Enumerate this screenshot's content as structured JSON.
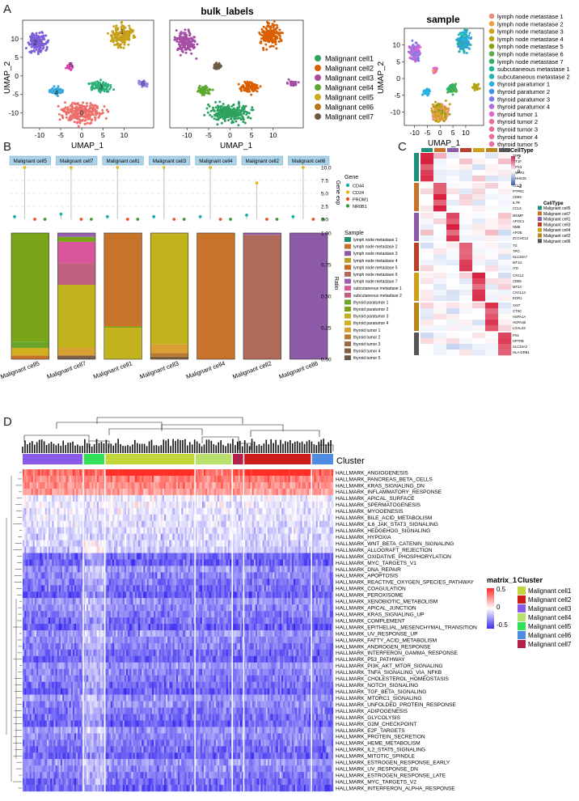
{
  "panel_labels": {
    "a": "A",
    "b": "B",
    "c": "C",
    "d": "D"
  },
  "colors": {
    "clusters": [
      "#2ca25f",
      "#d95f02",
      "#a54ea3",
      "#5fa830",
      "#cfa81c",
      "#b8761a",
      "#6b5a47"
    ],
    "samples": [
      "#f08a7c",
      "#e8a045",
      "#d4a017",
      "#b5a40f",
      "#8fa00c",
      "#55b046",
      "#2fb36a",
      "#22b59a",
      "#1eb5b5",
      "#2ab0e0",
      "#3d95e8",
      "#7a7ee8",
      "#b46ce0",
      "#e066cf",
      "#ee6aa5"
    ],
    "heat_high": "#ff2a2a",
    "heat_mid": "#ffffff",
    "heat_low": "#3b2bf0"
  },
  "panel_a": {
    "plot1": {
      "xlabel": "UMAP_1",
      "ylabel": "UMAP_2",
      "xticks": [
        "-10",
        "-5",
        "0",
        "5",
        "10"
      ],
      "yticks": [
        "10",
        "5",
        "0",
        "-5",
        "-10"
      ],
      "cluster_numbers": [
        "0",
        "1",
        "2",
        "3",
        "4",
        "5",
        "6"
      ]
    },
    "plot2": {
      "title": "bulk_labels",
      "xlabel": "UMAP_1",
      "xticks": [
        "-10",
        "-5",
        "0",
        "5",
        "10"
      ]
    },
    "plot2_legend": [
      "Malignant cell1",
      "Malignant cell2",
      "Malignant cell3",
      "Malignant cell4",
      "Malignant cell5",
      "Malignant cell6",
      "Malignant cell7"
    ],
    "plot3": {
      "title": "sample",
      "xlabel": "UMAP_1",
      "ylabel": "UMAP_2",
      "xticks": [
        "-10",
        "-5",
        "0",
        "5",
        "10"
      ],
      "yticks": [
        "10",
        "5",
        "0",
        "-5",
        "-10"
      ]
    },
    "plot3_legend": [
      "lymph node metastase 1",
      "lymph node metastase 2",
      "lymph node metastase 3",
      "lymph node metastase 4",
      "lymph node metastase 5",
      "lymph node metastase 6",
      "lymph node metastase 7",
      "subcutaneous metastase 1",
      "subcutaneous metastase 2",
      "thyroid paratumor 1",
      "thyroid paratumor 2",
      "thyroid paratumor 3",
      "thyroid paratumor 4",
      "thyroid tumor 1",
      "thyroid tumor 2",
      "thyroid tumor 3",
      "thyroid tumor 4",
      "thyroid tumor 5"
    ]
  },
  "panel_b": {
    "facets": [
      "Malignant cell5",
      "Malignant cell7",
      "Malignant cell1",
      "Malignant cell3",
      "Malignant cell4",
      "Malignant cell2",
      "Malignant cell6"
    ],
    "lollipop_ylabel": "Gene exp",
    "lollipop_yticks": [
      "10.0",
      "7.5",
      "5.0",
      "2.5",
      "0.0"
    ],
    "gene_legend_title": "Gene",
    "genes": [
      "CD44",
      "CD24",
      "PROM1",
      "NR0B1"
    ],
    "gene_colors": [
      "#1ab0a6",
      "#e8b820",
      "#e8552a",
      "#3a9a3a"
    ],
    "gene_values": [
      [
        0.5,
        10,
        0,
        0
      ],
      [
        1,
        10,
        0,
        0
      ],
      [
        0.5,
        10,
        0,
        0
      ],
      [
        0.5,
        10,
        0,
        0
      ],
      [
        0.5,
        10,
        0,
        0
      ],
      [
        0.8,
        7,
        0,
        0
      ],
      [
        0.5,
        10,
        0,
        0
      ]
    ],
    "stack_ylabel": "Ratio",
    "stack_yticks": [
      "1.00",
      "0.75",
      "0.50",
      "0.25",
      "0.00"
    ],
    "sample_legend_title": "Sample",
    "samples": [
      "lymph node metastase 1",
      "lymph node metastase 2",
      "lymph node metastase 3",
      "lymph node metastase 4",
      "lymph node metastase 5",
      "lymph node metastase 6",
      "lymph node metastase 7",
      "subcutaneous metastase 1",
      "subcutaneous metastase 2",
      "thyroid paratumor 1",
      "thyroid paratumor 2",
      "thyroid paratumor 3",
      "thyroid paratumor 4",
      "thyroid tumor 1",
      "thyroid tumor 2",
      "thyroid tumor 3",
      "thyroid tumor 4",
      "thyroid tumor 5"
    ],
    "sample_colors": [
      "#1f8f6f",
      "#c8732a",
      "#8d5aa8",
      "#b8a020",
      "#c46a1c",
      "#b06a5a",
      "#9a5fb0",
      "#d8559a",
      "#c06080",
      "#6aa52a",
      "#7aa518",
      "#c2b21c",
      "#d0b020",
      "#d8a030",
      "#b87a30",
      "#a06a40",
      "#806040",
      "#6a5a48"
    ],
    "stacks": [
      {
        "segments": [
          [
            1,
            0.03
          ],
          [
            12,
            0.06
          ],
          [
            9,
            0.05
          ],
          [
            10,
            0.86
          ]
        ]
      },
      {
        "segments": [
          [
            17,
            0.01
          ],
          [
            16,
            0.02
          ],
          [
            13,
            0.06
          ],
          [
            11,
            0.5
          ],
          [
            8,
            0.17
          ],
          [
            7,
            0.17
          ],
          [
            10,
            0.04
          ],
          [
            6,
            0.03
          ]
        ]
      },
      {
        "segments": [
          [
            11,
            0.25
          ],
          [
            10,
            0.01
          ],
          [
            1,
            0.74
          ]
        ]
      },
      {
        "segments": [
          [
            16,
            0.02
          ],
          [
            14,
            0.03
          ],
          [
            13,
            0.07
          ],
          [
            11,
            0.88
          ]
        ]
      },
      {
        "segments": [
          [
            1,
            1.0
          ]
        ]
      },
      {
        "segments": [
          [
            5,
            0.985
          ],
          [
            6,
            0.015
          ]
        ]
      },
      {
        "segments": [
          [
            2,
            1.0
          ]
        ]
      }
    ]
  },
  "panel_c": {
    "legend_title": "CellType",
    "colorbar_ticks": [
      "2",
      "1",
      "0",
      "-1",
      "-2"
    ],
    "celltype_legend": [
      "Malignant cell5",
      "Malignant cell7",
      "Malignant cell1",
      "Malignant cell3",
      "Malignant cell4",
      "Malignant cell2",
      "Malignant cell6"
    ],
    "celltype_colors": [
      "#1e8f7a",
      "#c8732a",
      "#8d5aa8",
      "#b8402a",
      "#d0a01c",
      "#b8861a",
      "#555555"
    ],
    "groups": [
      {
        "color": "#1e8f7a",
        "genes": [
          "TFF3",
          "MT1F",
          "GPX3",
          "HMPR1",
          "SNHG25"
        ]
      },
      {
        "color": "#c8732a",
        "genes": [
          "CCL4",
          "PTPRC",
          "CD69",
          "IL7R",
          "CCL5"
        ]
      },
      {
        "color": "#8d5aa8",
        "genes": [
          "MGMP",
          "APOC1",
          "NMB",
          "APOE",
          "ZCCHC12"
        ]
      },
      {
        "color": "#b8402a",
        "genes": [
          "TG",
          "TPO",
          "SLC26A7",
          "MT1G",
          "IYD"
        ]
      },
      {
        "color": "#d0a01c",
        "genes": [
          "CXCL2",
          "CD55",
          "MT2A",
          "CXCL14",
          "EGR1"
        ]
      },
      {
        "color": "#b8861a",
        "genes": [
          "XIST",
          "CTSC",
          "HSPA1A",
          "HSPA1B",
          "LGALS3"
        ]
      },
      {
        "color": "#555555",
        "genes": [
          "FN1",
          "SPTPB",
          "SLC34A2",
          "HLA-DRB1"
        ]
      }
    ]
  },
  "panel_d": {
    "cluster_bar_label": "Cluster",
    "matrix_legend_title": "matrix_1",
    "cluster_legend_title": "Cluster",
    "scale_ticks": [
      "0.5",
      "0",
      "-0.5"
    ],
    "cluster_legend": [
      "Malignant cell1",
      "Malignant cell2",
      "Malignant cell3",
      "Malignant cell4",
      "Malignant cell5",
      "Malignant cell6",
      "Malignant cell7"
    ],
    "cluster_legend_colors": [
      "#c2d63a",
      "#cc1b1b",
      "#8a5ae8",
      "#b9e06a",
      "#33e05a",
      "#4d8ce0",
      "#b5204a"
    ],
    "cluster_bar": [
      {
        "color": "#8a5ae8",
        "frac": 0.195
      },
      {
        "color": "#33e05a",
        "frac": 0.07
      },
      {
        "color": "#c2d63a",
        "frac": 0.29
      },
      {
        "color": "#b9e06a",
        "frac": 0.12
      },
      {
        "color": "#b5204a",
        "frac": 0.037
      },
      {
        "color": "#cc1b1b",
        "frac": 0.218
      },
      {
        "color": "#4d8ce0",
        "frac": 0.07
      }
    ],
    "pathways": [
      "HALLMARK_ANGIOGENESIS",
      "HALLMARK_PANCREAS_BETA_CELLS",
      "HALLMARK_KRAS_SIGNALING_DN",
      "HALLMARK_INFLAMMATORY_RESPONSE",
      "HALLMARK_APICAL_SURFACE",
      "HALLMARK_SPERMATOGENESIS",
      "HALLMARK_MYOGENESIS",
      "HALLMARK_BILE_ACID_METABOLISM",
      "HALLMARK_IL6_JAK_STAT3_SIGNALING",
      "HALLMARK_HEDGEHOG_SIGNALING",
      "HALLMARK_HYPOXIA",
      "HALLMARK_WNT_BETA_CATENIN_SIGNALING",
      "HALLMARK_ALLOGRAFT_REJECTION",
      "HALLMARK_OXIDATIVE_PHOSPHORYLATION",
      "HALLMARK_MYC_TARGETS_V1",
      "HALLMARK_DNA_REPAIR",
      "HALLMARK_APOPTOSIS",
      "HALLMARK_REACTIVE_OXYGEN_SPECIES_PATHWAY",
      "HALLMARK_COAGULATION",
      "HALLMARK_PEROXISOME",
      "HALLMARK_XENOBIOTIC_METABOLISM",
      "HALLMARK_APICAL_JUNCTION",
      "HALLMARK_KRAS_SIGNALING_UP",
      "HALLMARK_COMPLEMENT",
      "HALLMARK_EPITHELIAL_MESENCHYMAL_TRANSITION",
      "HALLMARK_UV_RESPONSE_UP",
      "HALLMARK_FATTY_ACID_METABOLISM",
      "HALLMARK_ANDROGEN_RESPONSE",
      "HALLMARK_INTERFERON_GAMMA_RESPONSE",
      "HALLMARK_P53_PATHWAY",
      "HALLMARK_PI3K_AKT_MTOR_SIGNALING",
      "HALLMARK_TNFA_SIGNALING_VIA_NFKB",
      "HALLMARK_CHOLESTEROL_HOMEOSTASIS",
      "HALLMARK_NOTCH_SIGNALING",
      "HALLMARK_TGF_BETA_SIGNALING",
      "HALLMARK_MTORC1_SIGNALING",
      "HALLMARK_UNFOLDED_PROTEIN_RESPONSE",
      "HALLMARK_ADIPOGENESIS",
      "HALLMARK_GLYCOLYSIS",
      "HALLMARK_G2M_CHECKPOINT",
      "HALLMARK_E2F_TARGETS",
      "HALLMARK_PROTEIN_SECRETION",
      "HALLMARK_HEME_METABOLISM",
      "HALLMARK_IL2_STAT5_SIGNALING",
      "HALLMARK_MITOTIC_SPINDLE",
      "HALLMARK_ESTROGEN_RESPONSE_EARLY",
      "HALLMARK_UV_RESPONSE_DN",
      "HALLMARK_ESTROGEN_RESPONSE_LATE",
      "HALLMARK_MYC_TARGETS_V2",
      "HALLMARK_INTERFERON_ALPHA_RESPONSE"
    ]
  }
}
